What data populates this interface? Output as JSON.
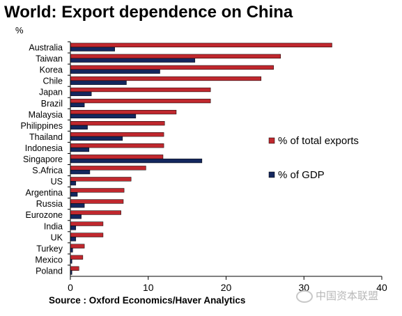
{
  "title": "World: Export dependence on China",
  "unit": "%",
  "source": "Source : Oxford Economics/Haver Analytics",
  "watermark": "中国资本联盟",
  "colors": {
    "exports": "#c0282e",
    "gdp": "#14275e"
  },
  "chart_data": {
    "type": "bar",
    "orientation": "horizontal",
    "categories": [
      "Australia",
      "Taiwan",
      "Korea",
      "Chile",
      "Japan",
      "Brazil",
      "Malaysia",
      "Philippines",
      "Thailand",
      "Indonesia",
      "Singapore",
      "S.Africa",
      "US",
      "Argentina",
      "Russia",
      "Eurozone",
      "India",
      "UK",
      "Turkey",
      "Mexico",
      "Poland"
    ],
    "series": [
      {
        "name": "% of total exports",
        "color": "#c0282e",
        "values": [
          33.6,
          27.0,
          26.1,
          24.5,
          18.0,
          18.0,
          13.6,
          12.1,
          12.0,
          12.0,
          11.9,
          9.7,
          7.8,
          6.9,
          6.8,
          6.5,
          4.2,
          4.2,
          1.8,
          1.6,
          1.1
        ]
      },
      {
        "name": "% of GDP",
        "color": "#14275e",
        "values": [
          5.7,
          16.0,
          11.5,
          7.2,
          2.7,
          1.8,
          8.4,
          2.2,
          6.7,
          2.4,
          16.9,
          2.5,
          0.7,
          0.9,
          1.8,
          1.4,
          0.7,
          0.7,
          0.3,
          0.2,
          0.2
        ]
      }
    ],
    "xlim": [
      0,
      40
    ],
    "xticks": [
      0,
      10,
      20,
      30,
      40
    ],
    "ylabel": "%",
    "grid": false,
    "legend": "right"
  }
}
